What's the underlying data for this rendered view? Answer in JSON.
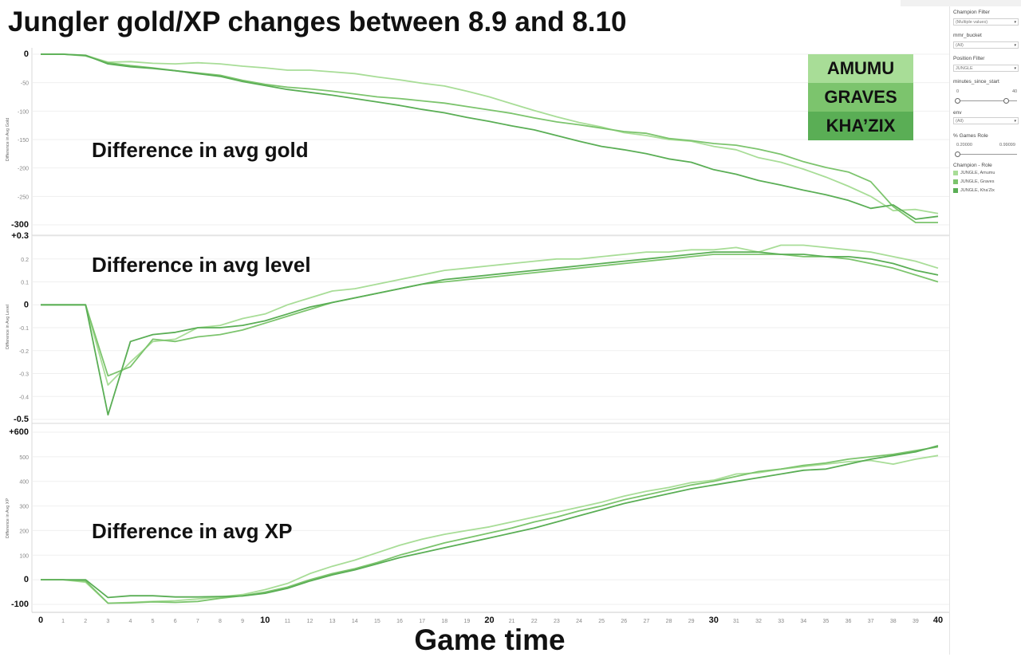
{
  "title": "Jungler gold/XP changes between 8.9 and 8.10",
  "x_axis_title": "Game time",
  "legend_boxes": [
    {
      "label": "AMUMU",
      "color": "#a8dd97"
    },
    {
      "label": "GRAVES",
      "color": "#7cc46d"
    },
    {
      "label": "KHA’ZIX",
      "color": "#5aae55"
    }
  ],
  "sidebar": {
    "champion_filter_label": "Champion Filter",
    "champion_filter_value": "(Multiple values)",
    "mmr_bucket_label": "mmr_bucket",
    "mmr_bucket_value": "(All)",
    "position_filter_label": "Position Filter",
    "position_filter_value": "JUNGLE",
    "minutes_label": "minutes_since_start",
    "minutes_min": "0",
    "minutes_max": "40",
    "env_label": "env",
    "env_value": "(All)",
    "games_role_label": "% Games Role",
    "games_role_min": "0.20000",
    "games_role_max": "0.99099",
    "legend_title": "Champion - Role",
    "legend_items": [
      "JUNGLE, Amumu",
      "JUNGLE, Graves",
      "JUNGLE, Kha'Zix"
    ]
  },
  "chart_data": [
    {
      "type": "line",
      "panel_label": "Difference in avg gold",
      "ylabel": "Difference in Avg Gold",
      "ylim": [
        -300,
        0
      ],
      "yticks": [
        "0",
        "-50",
        "-100",
        "-150",
        "-200",
        "-250",
        "-300"
      ],
      "x": [
        0,
        1,
        2,
        3,
        4,
        5,
        6,
        7,
        8,
        9,
        10,
        11,
        12,
        13,
        14,
        15,
        16,
        17,
        18,
        19,
        20,
        21,
        22,
        23,
        24,
        25,
        26,
        27,
        28,
        29,
        30,
        31,
        32,
        33,
        34,
        35,
        36,
        37,
        38,
        39,
        40
      ],
      "series": [
        {
          "name": "JUNGLE, Amumu",
          "color": "#a8dd97",
          "values": [
            0,
            0,
            -2,
            -14,
            -13,
            -16,
            -17,
            -15,
            -17,
            -21,
            -24,
            -28,
            -28,
            -31,
            -34,
            -40,
            -45,
            -51,
            -56,
            -65,
            -75,
            -87,
            -99,
            -110,
            -120,
            -128,
            -138,
            -143,
            -150,
            -153,
            -162,
            -168,
            -182,
            -190,
            -202,
            -216,
            -232,
            -250,
            -275,
            -273,
            -280
          ]
        },
        {
          "name": "JUNGLE, Graves",
          "color": "#7cc46d",
          "values": [
            0,
            0,
            -3,
            -15,
            -20,
            -24,
            -29,
            -33,
            -37,
            -46,
            -53,
            -58,
            -61,
            -65,
            -70,
            -75,
            -78,
            -82,
            -86,
            -92,
            -98,
            -104,
            -112,
            -119,
            -124,
            -130,
            -136,
            -139,
            -148,
            -152,
            -157,
            -160,
            -167,
            -176,
            -189,
            -199,
            -207,
            -224,
            -268,
            -296,
            -296
          ]
        },
        {
          "name": "JUNGLE, Kha'Zix",
          "color": "#5aae55",
          "values": [
            0,
            0,
            -2,
            -17,
            -22,
            -25,
            -29,
            -34,
            -39,
            -48,
            -55,
            -62,
            -67,
            -72,
            -78,
            -84,
            -90,
            -97,
            -103,
            -111,
            -118,
            -126,
            -133,
            -143,
            -153,
            -162,
            -168,
            -175,
            -184,
            -190,
            -203,
            -211,
            -222,
            -230,
            -239,
            -247,
            -257,
            -271,
            -265,
            -290,
            -285
          ]
        }
      ]
    },
    {
      "type": "line",
      "panel_label": "Difference in avg level",
      "ylabel": "Difference in Avg Level",
      "ylim": [
        -0.5,
        0.3
      ],
      "yticks": [
        "+0.3",
        "0.2",
        "0.1",
        "0",
        "-0.1",
        "-0.2",
        "-0.3",
        "-0.4",
        "-0.5"
      ],
      "x": [
        0,
        1,
        2,
        3,
        4,
        5,
        6,
        7,
        8,
        9,
        10,
        11,
        12,
        13,
        14,
        15,
        16,
        17,
        18,
        19,
        20,
        21,
        22,
        23,
        24,
        25,
        26,
        27,
        28,
        29,
        30,
        31,
        32,
        33,
        34,
        35,
        36,
        37,
        38,
        39,
        40
      ],
      "series": [
        {
          "name": "JUNGLE, Amumu",
          "color": "#a8dd97",
          "values": [
            0,
            0,
            0,
            -0.35,
            -0.25,
            -0.16,
            -0.15,
            -0.1,
            -0.09,
            -0.06,
            -0.04,
            0.0,
            0.03,
            0.06,
            0.07,
            0.09,
            0.11,
            0.13,
            0.15,
            0.16,
            0.17,
            0.18,
            0.19,
            0.2,
            0.2,
            0.21,
            0.22,
            0.23,
            0.23,
            0.24,
            0.24,
            0.25,
            0.23,
            0.26,
            0.26,
            0.25,
            0.24,
            0.23,
            0.21,
            0.19,
            0.16
          ]
        },
        {
          "name": "JUNGLE, Graves",
          "color": "#7cc46d",
          "values": [
            0,
            0,
            0,
            -0.31,
            -0.27,
            -0.15,
            -0.16,
            -0.14,
            -0.13,
            -0.11,
            -0.08,
            -0.05,
            -0.02,
            0.01,
            0.03,
            0.05,
            0.07,
            0.09,
            0.1,
            0.11,
            0.12,
            0.13,
            0.14,
            0.15,
            0.16,
            0.17,
            0.18,
            0.19,
            0.2,
            0.21,
            0.22,
            0.22,
            0.22,
            0.22,
            0.21,
            0.21,
            0.2,
            0.18,
            0.16,
            0.13,
            0.1
          ]
        },
        {
          "name": "JUNGLE, Kha'Zix",
          "color": "#5aae55",
          "values": [
            0,
            0,
            0,
            -0.48,
            -0.16,
            -0.13,
            -0.12,
            -0.1,
            -0.1,
            -0.09,
            -0.07,
            -0.04,
            -0.01,
            0.01,
            0.03,
            0.05,
            0.07,
            0.09,
            0.11,
            0.12,
            0.13,
            0.14,
            0.15,
            0.16,
            0.17,
            0.18,
            0.19,
            0.2,
            0.21,
            0.22,
            0.23,
            0.23,
            0.23,
            0.22,
            0.22,
            0.21,
            0.21,
            0.2,
            0.18,
            0.15,
            0.13
          ]
        }
      ]
    },
    {
      "type": "line",
      "panel_label": "Difference in avg XP",
      "ylabel": "Difference in Avg XP",
      "ylim": [
        -100,
        600
      ],
      "yticks": [
        "+600",
        "500",
        "400",
        "300",
        "200",
        "100",
        "0",
        "-100"
      ],
      "x": [
        0,
        1,
        2,
        3,
        4,
        5,
        6,
        7,
        8,
        9,
        10,
        11,
        12,
        13,
        14,
        15,
        16,
        17,
        18,
        19,
        20,
        21,
        22,
        23,
        24,
        25,
        26,
        27,
        28,
        29,
        30,
        31,
        32,
        33,
        34,
        35,
        36,
        37,
        38,
        39,
        40
      ],
      "xticks": [
        "0",
        "1",
        "2",
        "3",
        "4",
        "5",
        "6",
        "7",
        "8",
        "9",
        "10",
        "11",
        "12",
        "13",
        "14",
        "15",
        "16",
        "17",
        "18",
        "19",
        "20",
        "21",
        "22",
        "23",
        "24",
        "25",
        "26",
        "27",
        "28",
        "29",
        "30",
        "31",
        "32",
        "33",
        "34",
        "35",
        "36",
        "37",
        "38",
        "39",
        "40"
      ],
      "series": [
        {
          "name": "JUNGLE, Amumu",
          "color": "#a8dd97",
          "values": [
            0,
            0,
            -10,
            -95,
            -92,
            -88,
            -85,
            -78,
            -70,
            -60,
            -40,
            -15,
            25,
            55,
            80,
            110,
            140,
            165,
            185,
            200,
            215,
            235,
            255,
            275,
            295,
            315,
            340,
            360,
            375,
            395,
            405,
            430,
            435,
            450,
            460,
            470,
            480,
            485,
            470,
            490,
            505
          ]
        },
        {
          "name": "JUNGLE, Graves",
          "color": "#7cc46d",
          "values": [
            0,
            0,
            -5,
            -95,
            -94,
            -90,
            -92,
            -88,
            -75,
            -65,
            -50,
            -30,
            0,
            25,
            45,
            70,
            100,
            125,
            150,
            170,
            190,
            210,
            235,
            255,
            280,
            300,
            325,
            345,
            365,
            385,
            400,
            420,
            440,
            450,
            465,
            475,
            490,
            500,
            510,
            525,
            540
          ]
        },
        {
          "name": "JUNGLE, Kha'Zix",
          "color": "#5aae55",
          "values": [
            0,
            0,
            0,
            -72,
            -65,
            -65,
            -70,
            -70,
            -68,
            -66,
            -55,
            -35,
            -5,
            20,
            40,
            65,
            90,
            110,
            130,
            150,
            170,
            190,
            210,
            235,
            260,
            285,
            310,
            330,
            350,
            370,
            385,
            400,
            415,
            430,
            445,
            450,
            470,
            490,
            505,
            520,
            545
          ]
        }
      ]
    }
  ]
}
